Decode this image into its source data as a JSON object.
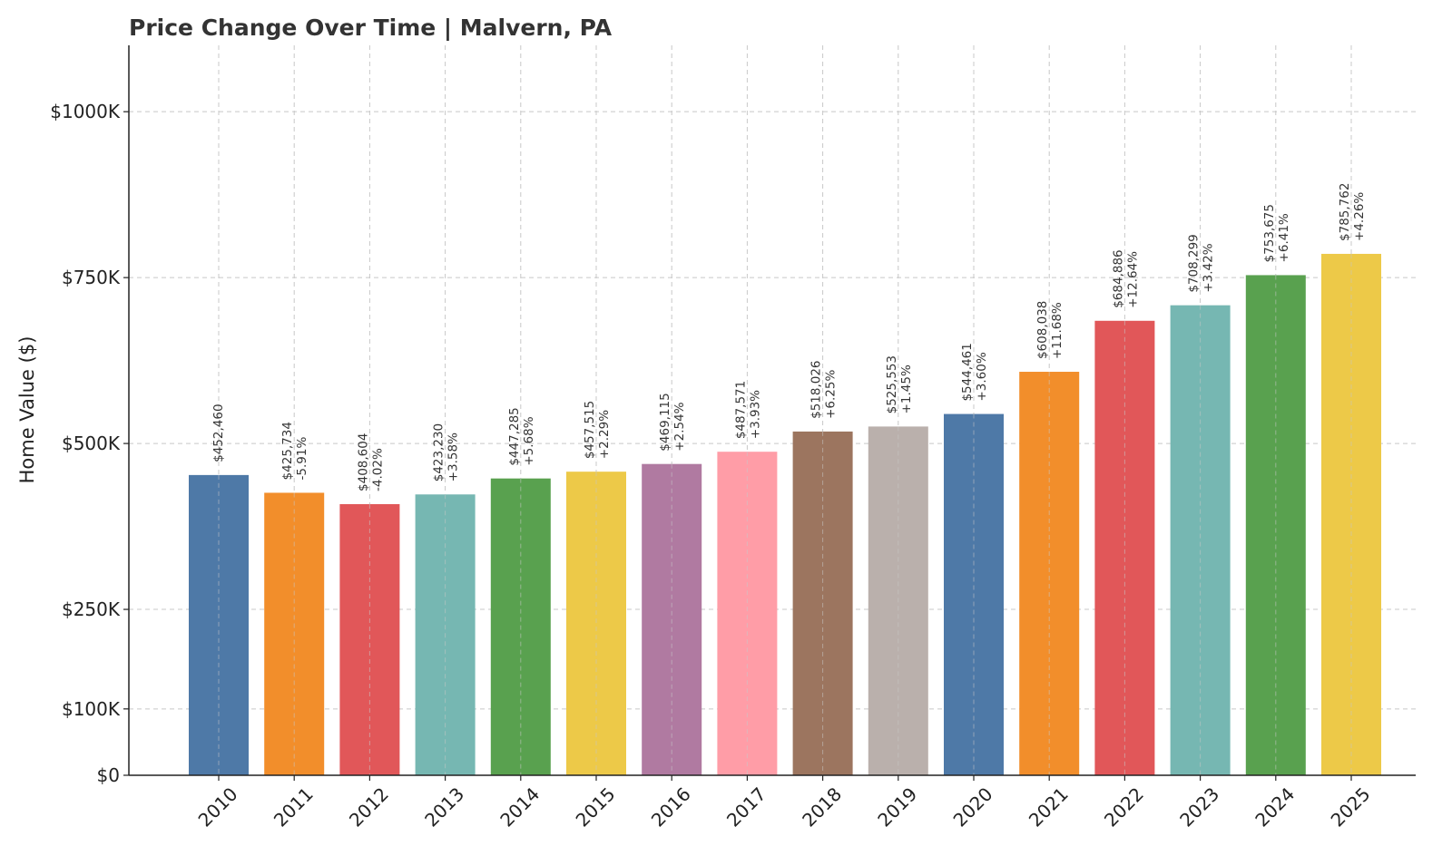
{
  "chart_data": {
    "type": "bar",
    "title": "Price Change Over Time | Malvern, PA",
    "xlabel": "",
    "ylabel": "Home Value ($)",
    "ylim": [
      0,
      1100000
    ],
    "grid": true,
    "yticks": [
      {
        "value": 0,
        "label": "$0"
      },
      {
        "value": 100000,
        "label": "$100K"
      },
      {
        "value": 250000,
        "label": "$250K"
      },
      {
        "value": 500000,
        "label": "$500K"
      },
      {
        "value": 750000,
        "label": "$750K"
      },
      {
        "value": 1000000,
        "label": "$1000K"
      }
    ],
    "categories": [
      "2010",
      "2011",
      "2012",
      "2013",
      "2014",
      "2015",
      "2016",
      "2017",
      "2018",
      "2019",
      "2020",
      "2021",
      "2022",
      "2023",
      "2024",
      "2025"
    ],
    "values": [
      452460,
      425734,
      408604,
      423230,
      447285,
      457515,
      469115,
      487571,
      518026,
      525553,
      544461,
      608038,
      684886,
      708299,
      753675,
      785762
    ],
    "value_labels": [
      "$452,460",
      "$425,734",
      "$408,604",
      "$423,230",
      "$447,285",
      "$457,515",
      "$469,115",
      "$487,571",
      "$518,026",
      "$525,553",
      "$544,461",
      "$608,038",
      "$684,886",
      "$708,299",
      "$753,675",
      "$785,762"
    ],
    "change_labels": [
      "",
      "-5.91%",
      "-4.02%",
      "+3.58%",
      "+5.68%",
      "+2.29%",
      "+2.54%",
      "+3.93%",
      "+6.25%",
      "+1.45%",
      "+3.60%",
      "+11.68%",
      "+12.64%",
      "+3.42%",
      "+6.41%",
      "+4.26%"
    ],
    "colors": [
      "#4e79a7",
      "#f28e2b",
      "#e15759",
      "#76b7b2",
      "#59a14f",
      "#edc948",
      "#b07aa1",
      "#ff9da7",
      "#9c755f",
      "#bab0ac",
      "#4e79a7",
      "#f28e2b",
      "#e15759",
      "#76b7b2",
      "#59a14f",
      "#edc948"
    ]
  }
}
